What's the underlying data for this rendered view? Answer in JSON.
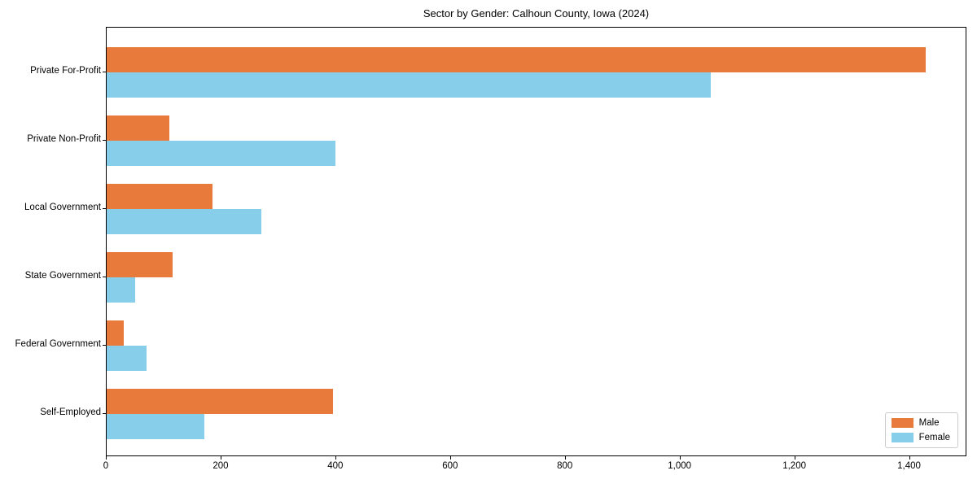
{
  "title": "Sector by Gender: Calhoun County, Iowa (2024)",
  "colors": {
    "male": "#e87a3c",
    "female": "#87ceeb",
    "axis": "#000000",
    "legend_border": "#cccccc",
    "background": "#ffffff"
  },
  "legend": {
    "position": "lower right",
    "items": [
      {
        "label": "Male",
        "color": "#e87a3c"
      },
      {
        "label": "Female",
        "color": "#87ceeb"
      }
    ]
  },
  "chart_data": {
    "type": "bar",
    "orientation": "horizontal",
    "title": "Sector by Gender: Calhoun County, Iowa (2024)",
    "categories": [
      "Private For-Profit",
      "Private Non-Profit",
      "Local Government",
      "State Government",
      "Federal Government",
      "Self-Employed"
    ],
    "series": [
      {
        "name": "Male",
        "color": "#e87a3c",
        "values": [
          1430,
          110,
          185,
          115,
          30,
          395
        ]
      },
      {
        "name": "Female",
        "color": "#87ceeb",
        "values": [
          1055,
          400,
          270,
          50,
          70,
          170
        ]
      }
    ],
    "xlabel": "",
    "ylabel": "",
    "xlim": [
      0,
      1500
    ],
    "x_ticks": [
      {
        "value": 0,
        "label": "0"
      },
      {
        "value": 200,
        "label": "200"
      },
      {
        "value": 400,
        "label": "400"
      },
      {
        "value": 600,
        "label": "600"
      },
      {
        "value": 800,
        "label": "800"
      },
      {
        "value": 1000,
        "label": "1,000"
      },
      {
        "value": 1200,
        "label": "1,200"
      },
      {
        "value": 1400,
        "label": "1,400"
      }
    ],
    "grid": false,
    "legend_position": "lower right"
  }
}
